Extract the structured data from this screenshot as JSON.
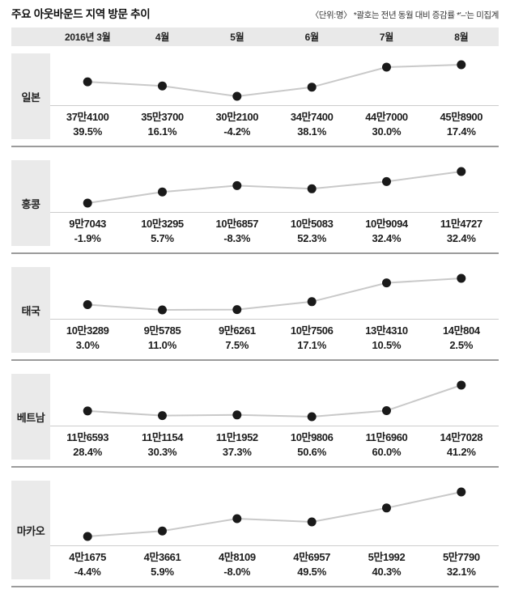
{
  "title": "주요 아웃바운드 지역 방문 추이",
  "unit_note": "〈단위:명〉 *괄호는 전년 동월 대비 증감률 *'–'는 미집계",
  "months": [
    "2016년 3월",
    "4월",
    "5월",
    "6월",
    "7월",
    "8월"
  ],
  "colors": {
    "header_bg": "#e9e9e9",
    "label_bg": "#eaeaea",
    "trend_line": "#c9c9c9",
    "dot": "#1a1a1a",
    "chart_baseline": "#cccccc",
    "block_separator": "#9b9b9b",
    "text": "#1d1d1d"
  },
  "chart_data": [
    {
      "type": "line",
      "region": "일본",
      "categories": [
        "2016년 3월",
        "4월",
        "5월",
        "6월",
        "7월",
        "8월"
      ],
      "values": [
        374100,
        353700,
        302100,
        347400,
        447000,
        458900
      ],
      "value_labels": [
        "37만4100",
        "35만3700",
        "30만2100",
        "34만7400",
        "44만7000",
        "45만8900"
      ],
      "pct_change_labels": [
        "39.5%",
        "16.1%",
        "-4.2%",
        "38.1%",
        "30.0%",
        "17.4%"
      ]
    },
    {
      "type": "line",
      "region": "홍콩",
      "categories": [
        "2016년 3월",
        "4월",
        "5월",
        "6월",
        "7월",
        "8월"
      ],
      "values": [
        97043,
        103295,
        106857,
        105083,
        109094,
        114727
      ],
      "value_labels": [
        "9만7043",
        "10만3295",
        "10만6857",
        "10만5083",
        "10만9094",
        "11만4727"
      ],
      "pct_change_labels": [
        "-1.9%",
        "5.7%",
        "-8.3%",
        "52.3%",
        "32.4%",
        "32.4%"
      ]
    },
    {
      "type": "line",
      "region": "태국",
      "categories": [
        "2016년 3월",
        "4월",
        "5월",
        "6월",
        "7월",
        "8월"
      ],
      "values": [
        103289,
        95785,
        96261,
        107506,
        134310,
        140804
      ],
      "value_labels": [
        "10만3289",
        "9만5785",
        "9만6261",
        "10만7506",
        "13만4310",
        "14만804"
      ],
      "pct_change_labels": [
        "3.0%",
        "11.0%",
        "7.5%",
        "17.1%",
        "10.5%",
        "2.5%"
      ]
    },
    {
      "type": "line",
      "region": "베트남",
      "categories": [
        "2016년 3월",
        "4월",
        "5월",
        "6월",
        "7월",
        "8월"
      ],
      "values": [
        116593,
        111154,
        111952,
        109806,
        116960,
        147028
      ],
      "value_labels": [
        "11만6593",
        "11만1154",
        "11만1952",
        "10만9806",
        "11만6960",
        "14만7028"
      ],
      "pct_change_labels": [
        "28.4%",
        "30.3%",
        "37.3%",
        "50.6%",
        "60.0%",
        "41.2%"
      ]
    },
    {
      "type": "line",
      "region": "마카오",
      "categories": [
        "2016년 3월",
        "4월",
        "5월",
        "6월",
        "7월",
        "8월"
      ],
      "values": [
        41675,
        43661,
        48109,
        46957,
        51992,
        57790
      ],
      "value_labels": [
        "4만1675",
        "4만3661",
        "4만8109",
        "4만6957",
        "5만1992",
        "5만7790"
      ],
      "pct_change_labels": [
        "-4.4%",
        "5.9%",
        "-8.0%",
        "49.5%",
        "40.3%",
        "32.1%"
      ]
    }
  ]
}
